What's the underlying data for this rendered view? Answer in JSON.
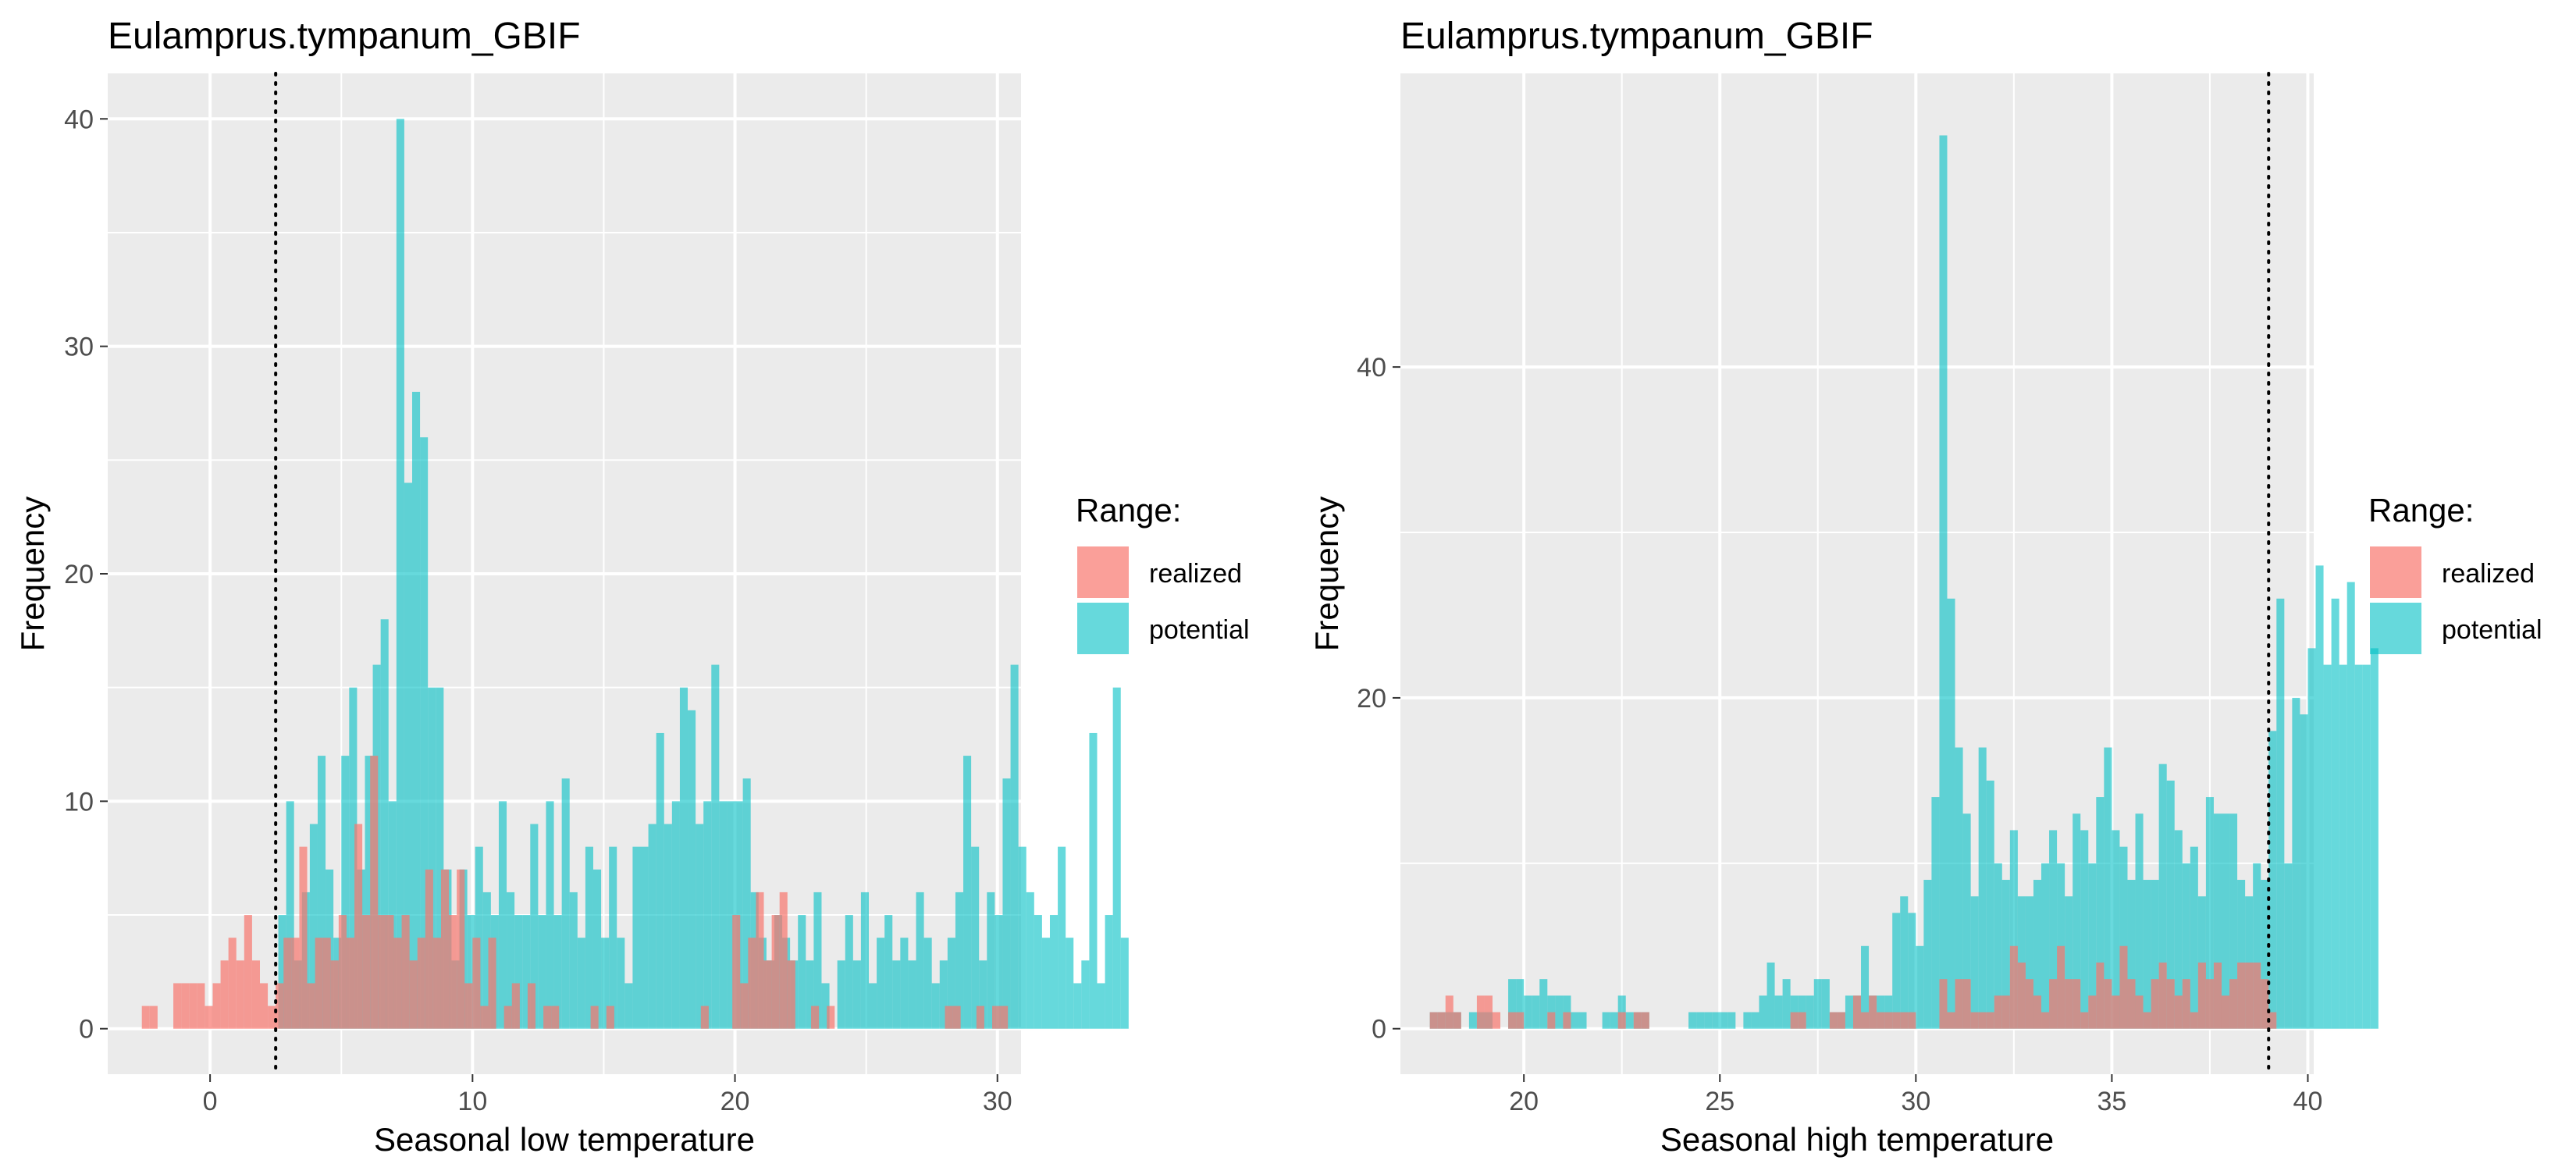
{
  "legend": {
    "title": "Range:",
    "items": [
      {
        "label": "realized",
        "color": "#F8766D"
      },
      {
        "label": "potential",
        "color": "#00BFC4"
      }
    ]
  },
  "chart_data": [
    {
      "type": "histogram",
      "title": "Eulamprus.tympanum_GBIF",
      "xlabel": "Seasonal low temperature",
      "ylabel": "Frequency",
      "xlim": [
        -3.9,
        30.9
      ],
      "ylim": [
        -2,
        42
      ],
      "x_ticks": [
        0,
        10,
        20,
        30
      ],
      "y_ticks": [
        0,
        10,
        20,
        30,
        40
      ],
      "bin_width": 0.3,
      "vline": 2.5,
      "grid": true,
      "legend_position": "right",
      "series": [
        {
          "name": "potential",
          "color": "#00BFC4",
          "bins_start": 2.6,
          "values": [
            5,
            10,
            3,
            6,
            9,
            12,
            7,
            4,
            12,
            15,
            7,
            12,
            16,
            18,
            10,
            40,
            24,
            28,
            26,
            15,
            15,
            7,
            3,
            7,
            5,
            8,
            6,
            5,
            10,
            6,
            5,
            5,
            9,
            5,
            10,
            5,
            11,
            6,
            4,
            8,
            7,
            4,
            8,
            4,
            2,
            8,
            8,
            9,
            13,
            9,
            10,
            15,
            14,
            9,
            10,
            16,
            10,
            10,
            10,
            11,
            6,
            4,
            3,
            5,
            4,
            3,
            5,
            3,
            6,
            2,
            0,
            3,
            5,
            3,
            6,
            2,
            4,
            5,
            3,
            4,
            3,
            6,
            4,
            2,
            3,
            4,
            6,
            12,
            8,
            3,
            6,
            5,
            11,
            16,
            8,
            6,
            5,
            4,
            5,
            8,
            4,
            2,
            3,
            13,
            2,
            5,
            15,
            4
          ]
        },
        {
          "name": "realized",
          "color": "#F8766D",
          "bins_start": -2.6,
          "values": [
            1,
            1,
            0,
            0,
            2,
            2,
            2,
            2,
            1,
            2,
            3,
            4,
            3,
            5,
            3,
            2,
            1,
            2,
            4,
            4,
            8,
            2,
            4,
            4,
            3,
            5,
            4,
            9,
            5,
            12,
            5,
            5,
            4,
            5,
            3,
            4,
            7,
            4,
            7,
            5,
            7,
            2,
            4,
            1,
            4,
            0,
            1,
            2,
            0,
            2,
            0,
            1,
            1,
            0,
            0,
            0,
            0,
            1,
            0,
            1,
            0,
            0,
            0,
            0,
            0,
            0,
            0,
            0,
            0,
            0,
            0,
            1,
            0,
            0,
            0,
            5,
            2,
            4,
            6,
            3,
            5,
            6,
            3,
            0,
            0,
            1,
            0,
            1,
            0,
            0,
            0,
            0,
            0,
            0,
            0,
            0,
            0,
            0,
            0,
            0,
            0,
            0,
            1,
            1,
            0,
            0,
            1,
            0,
            1,
            1,
            0,
            0,
            0,
            0,
            0,
            0
          ]
        }
      ]
    },
    {
      "type": "histogram",
      "title": "Eulamprus.tympanum_GBIF",
      "xlabel": "Seasonal high temperature",
      "ylabel": "Frequency",
      "xlim": [
        16.85,
        40.15
      ],
      "ylim": [
        -2.75,
        57.75
      ],
      "x_ticks": [
        20,
        25,
        30,
        35,
        40
      ],
      "y_ticks": [
        0,
        20,
        40
      ],
      "bin_width": 0.2,
      "vline": 39.0,
      "grid": true,
      "legend_position": "right",
      "series": [
        {
          "name": "potential",
          "color": "#00BFC4",
          "bins_start": 17.6,
          "values": [
            1,
            1,
            1,
            1,
            0,
            1,
            1,
            1,
            0,
            0,
            3,
            3,
            2,
            2,
            3,
            2,
            2,
            2,
            1,
            1,
            0,
            0,
            1,
            1,
            2,
            1,
            1,
            1,
            0,
            0,
            0,
            0,
            0,
            1,
            1,
            1,
            1,
            1,
            1,
            0,
            1,
            1,
            2,
            4,
            2,
            3,
            2,
            2,
            2,
            3,
            3,
            1,
            1,
            2,
            2,
            5,
            2,
            2,
            2,
            7,
            8,
            7,
            5,
            9,
            14,
            54,
            26,
            17,
            13,
            8,
            17,
            15,
            10,
            9,
            12,
            8,
            8,
            9,
            10,
            12,
            10,
            8,
            13,
            12,
            10,
            14,
            17,
            12,
            11,
            9,
            13,
            9,
            9,
            16,
            15,
            12,
            10,
            11,
            8,
            14,
            13,
            13,
            13,
            9,
            8,
            10,
            9,
            18,
            26,
            10,
            20,
            19,
            23,
            28,
            22,
            26,
            22,
            27,
            22,
            22,
            23
          ]
        },
        {
          "name": "realized",
          "color": "#F8766D",
          "bins_start": 17.6,
          "values": [
            1,
            1,
            2,
            1,
            0,
            0,
            2,
            2,
            1,
            0,
            1,
            1,
            0,
            0,
            0,
            1,
            0,
            1,
            0,
            0,
            0,
            0,
            0,
            0,
            1,
            0,
            1,
            1,
            0,
            0,
            0,
            0,
            0,
            0,
            0,
            0,
            0,
            0,
            0,
            0,
            0,
            0,
            0,
            0,
            0,
            0,
            1,
            1,
            0,
            0,
            0,
            1,
            1,
            0,
            2,
            1,
            2,
            1,
            1,
            1,
            1,
            1,
            0,
            0,
            0,
            3,
            1,
            3,
            3,
            1,
            1,
            1,
            2,
            2,
            5,
            4,
            3,
            2,
            1,
            3,
            5,
            3,
            3,
            1,
            2,
            4,
            3,
            2,
            5,
            3,
            2,
            1,
            3,
            4,
            3,
            2,
            3,
            1,
            4,
            3,
            4,
            2,
            3,
            4,
            4,
            4,
            3,
            1,
            0,
            0,
            0,
            0,
            0,
            0,
            0,
            0,
            0,
            0,
            0,
            0,
            0
          ]
        }
      ]
    }
  ]
}
